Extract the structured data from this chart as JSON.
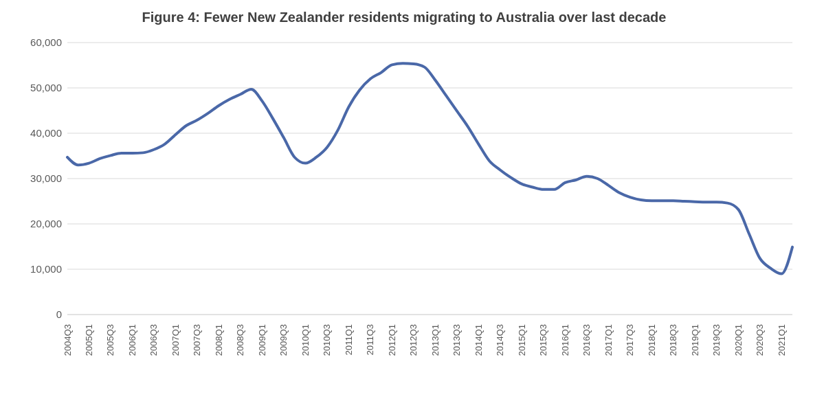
{
  "chart_data": {
    "type": "line",
    "title": "Figure 4: Fewer New Zealander residents migrating to Australia over last decade",
    "categories": [
      "2004Q3",
      null,
      "2005Q1",
      null,
      "2005Q3",
      null,
      "2006Q1",
      null,
      "2006Q3",
      null,
      "2007Q1",
      null,
      "2007Q3",
      null,
      "2008Q1",
      null,
      "2008Q3",
      null,
      "2009Q1",
      null,
      "2009Q3",
      null,
      "2010Q1",
      null,
      "2010Q3",
      null,
      "2011Q1",
      null,
      "2011Q3",
      null,
      "2012Q1",
      null,
      "2012Q3",
      null,
      "2013Q1",
      null,
      "2013Q3",
      null,
      "2014Q1",
      null,
      "2014Q3",
      null,
      "2015Q1",
      null,
      "2015Q3",
      null,
      "2016Q1",
      null,
      "2016Q3",
      null,
      "2017Q1",
      null,
      "2017Q3",
      null,
      "2018Q1",
      null,
      "2018Q3",
      null,
      "2019Q1",
      null,
      "2019Q3",
      null,
      "2020Q1",
      null,
      "2020Q3",
      null,
      "2021Q1",
      null
    ],
    "series": [
      {
        "color": "#4a68a8",
        "values": [
          34700,
          33000,
          33400,
          34400,
          35100,
          35600,
          35600,
          35700,
          36400,
          37600,
          39700,
          41700,
          42900,
          44400,
          46100,
          47500,
          48600,
          49700,
          47100,
          43200,
          39000,
          34700,
          33400,
          34700,
          36900,
          40700,
          45800,
          49500,
          52000,
          53400,
          55100,
          55400,
          55300,
          54600,
          51700,
          48300,
          44900,
          41500,
          37600,
          33900,
          31900,
          30200,
          28800,
          28100,
          27600,
          27600,
          29100,
          29700,
          30500,
          30000,
          28500,
          26900,
          25900,
          25300,
          25100,
          25100,
          25100,
          25000,
          24900,
          24800,
          24800,
          24600,
          23200,
          17800,
          12400,
          10200,
          9000,
          14900
        ]
      }
    ],
    "ylim": [
      0,
      60000
    ],
    "yticks": [
      {
        "value": 0,
        "label": "0"
      },
      {
        "value": 10000,
        "label": "10,000"
      },
      {
        "value": 20000,
        "label": "20,000"
      },
      {
        "value": 30000,
        "label": "30,000"
      },
      {
        "value": 40000,
        "label": "40,000"
      },
      {
        "value": 50000,
        "label": "50,000"
      },
      {
        "value": 60000,
        "label": "60,000"
      }
    ],
    "grid": "y",
    "legend": false,
    "marker": "none",
    "line_style": "solid"
  }
}
